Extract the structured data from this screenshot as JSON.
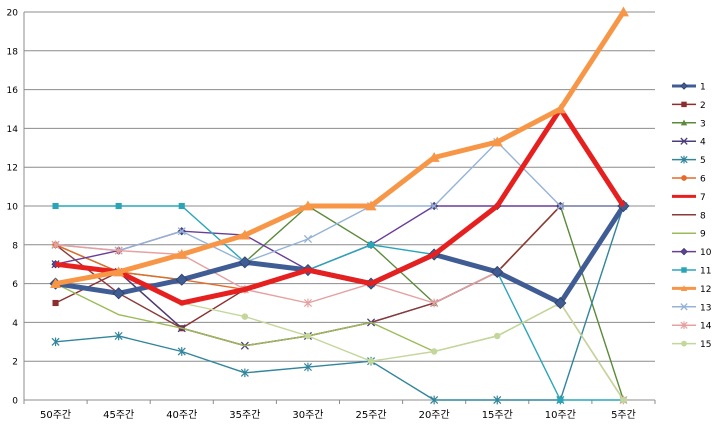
{
  "chart_data": {
    "type": "line",
    "title": "",
    "xlabel": "",
    "ylabel": "",
    "ylim": [
      0,
      20
    ],
    "yticks": [
      0,
      2,
      4,
      6,
      8,
      10,
      12,
      14,
      16,
      18,
      20
    ],
    "grid": true,
    "legend": "right",
    "categories": [
      "50주간",
      "45주간",
      "40주간",
      "35주간",
      "30주간",
      "25주간",
      "20주간",
      "15주간",
      "10주간",
      "5주간"
    ],
    "series": [
      {
        "name": "1",
        "color": "#3f5d94",
        "marker": "diamond",
        "values": [
          6,
          5.5,
          6.2,
          7.1,
          6.7,
          6,
          7.5,
          6.6,
          5,
          10
        ]
      },
      {
        "name": "2",
        "color": "#8b2e2e",
        "marker": "square",
        "values": [
          5,
          6.6,
          3.7,
          5.7,
          6.7,
          6,
          7.5,
          6.6,
          10,
          10
        ]
      },
      {
        "name": "3",
        "color": "#5a8a3a",
        "marker": "triangle",
        "values": [
          8,
          6.6,
          6.2,
          7.1,
          10,
          8,
          5,
          6.6,
          10,
          0
        ]
      },
      {
        "name": "4",
        "color": "#4b3c7a",
        "marker": "x",
        "values": [
          7,
          6.6,
          3.7,
          2.8,
          3.3,
          4,
          5,
          6.6,
          5,
          10
        ]
      },
      {
        "name": "5",
        "color": "#31859c",
        "marker": "star",
        "values": [
          3,
          3.3,
          2.5,
          1.4,
          1.7,
          2,
          0,
          0,
          0,
          10
        ]
      },
      {
        "name": "6",
        "color": "#e46c2b",
        "marker": "circle",
        "values": [
          8,
          6.6,
          6.2,
          5.7,
          6.7,
          6,
          7.5,
          6.6,
          10,
          10
        ]
      },
      {
        "name": "7",
        "color": "#e61f1f",
        "marker": "none",
        "values": [
          7,
          6.6,
          5,
          5.7,
          6.7,
          6,
          7.5,
          10,
          15,
          10
        ]
      },
      {
        "name": "8",
        "color": "#8b3a3a",
        "marker": "none",
        "values": [
          8,
          5.5,
          3.7,
          2.8,
          3.3,
          4,
          5,
          6.6,
          10,
          10
        ]
      },
      {
        "name": "9",
        "color": "#9bbb59",
        "marker": "none",
        "values": [
          6,
          4.4,
          3.7,
          2.8,
          3.3,
          4,
          2.5,
          3.3,
          5,
          0
        ]
      },
      {
        "name": "10",
        "color": "#6a3d9a",
        "marker": "diamond",
        "values": [
          7,
          7.7,
          8.7,
          8.5,
          6.7,
          8,
          10,
          10,
          10,
          10
        ]
      },
      {
        "name": "11",
        "color": "#2aa5b8",
        "marker": "square",
        "values": [
          10,
          10,
          10,
          7.1,
          6.7,
          8,
          7.5,
          6.6,
          0,
          0
        ]
      },
      {
        "name": "12",
        "color": "#f79646",
        "marker": "triangle",
        "values": [
          6,
          6.6,
          7.5,
          8.5,
          10,
          10,
          12.5,
          13.3,
          15,
          20
        ]
      },
      {
        "name": "13",
        "color": "#95b3d7",
        "marker": "x",
        "values": [
          8,
          7.7,
          8.7,
          7.1,
          8.3,
          10,
          10,
          13.3,
          10,
          10
        ]
      },
      {
        "name": "14",
        "color": "#e6a0a0",
        "marker": "star",
        "values": [
          8,
          7.7,
          7.5,
          5.7,
          5,
          6,
          5,
          6.6,
          5,
          0
        ]
      },
      {
        "name": "15",
        "color": "#c4d79b",
        "marker": "circle",
        "values": [
          6,
          6.6,
          5,
          4.3,
          3.3,
          2,
          2.5,
          3.3,
          5,
          0
        ]
      }
    ]
  }
}
